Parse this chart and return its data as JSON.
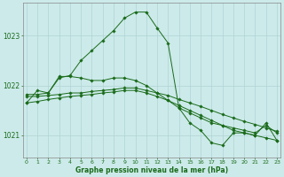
{
  "xlabel": "Graphe pression niveau de la mer (hPa)",
  "background_color": "#cceaea",
  "grid_color": "#b0d4d4",
  "line_color": "#1a6b1a",
  "ylim": [
    1020.55,
    1023.65
  ],
  "xlim": [
    -0.3,
    23.3
  ],
  "yticks": [
    1021,
    1022,
    1023
  ],
  "xticks": [
    0,
    1,
    2,
    3,
    4,
    5,
    6,
    7,
    8,
    9,
    10,
    11,
    12,
    13,
    14,
    15,
    16,
    17,
    18,
    19,
    20,
    21,
    22,
    23
  ],
  "series": [
    [
      1021.65,
      1021.9,
      1021.85,
      1022.15,
      1022.2,
      1022.5,
      1022.7,
      1022.9,
      1023.1,
      1023.35,
      1023.47,
      1023.47,
      1023.15,
      1022.85,
      1021.55,
      1021.25,
      1021.1,
      1020.85,
      1020.8,
      1021.05,
      1021.05,
      1021.0,
      1021.25,
      1020.9
    ],
    [
      1021.82,
      1021.82,
      1021.85,
      1022.18,
      1022.18,
      1022.15,
      1022.1,
      1022.1,
      1022.15,
      1022.15,
      1022.1,
      1022.0,
      1021.85,
      1021.7,
      1021.55,
      1021.45,
      1021.35,
      1021.25,
      1021.2,
      1021.15,
      1021.1,
      1021.05,
      1021.2,
      1021.05
    ],
    [
      1021.78,
      1021.78,
      1021.8,
      1021.82,
      1021.85,
      1021.85,
      1021.88,
      1021.9,
      1021.92,
      1021.95,
      1021.95,
      1021.9,
      1021.85,
      1021.8,
      1021.72,
      1021.65,
      1021.58,
      1021.5,
      1021.42,
      1021.35,
      1021.28,
      1021.22,
      1021.15,
      1021.08
    ],
    [
      1021.65,
      1021.68,
      1021.72,
      1021.75,
      1021.78,
      1021.8,
      1021.82,
      1021.85,
      1021.87,
      1021.9,
      1021.9,
      1021.85,
      1021.78,
      1021.7,
      1021.6,
      1021.5,
      1021.4,
      1021.3,
      1021.2,
      1021.1,
      1021.05,
      1021.0,
      1020.95,
      1020.9
    ]
  ]
}
